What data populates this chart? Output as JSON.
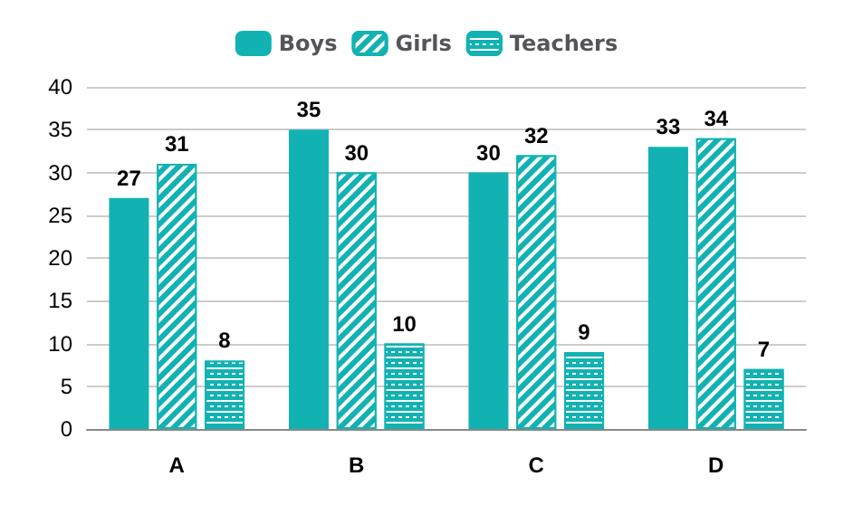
{
  "chart_data": {
    "type": "bar",
    "categories": [
      "A",
      "B",
      "C",
      "D"
    ],
    "series": [
      {
        "name": "Boys",
        "color": "#12b2b2",
        "values": [
          27,
          35,
          30,
          33
        ]
      },
      {
        "name": "Girls",
        "color": "#12b2b2",
        "values": [
          31,
          30,
          32,
          34
        ]
      },
      {
        "name": "Teachers",
        "color": "#12b2b2",
        "values": [
          8,
          10,
          9,
          7
        ]
      }
    ],
    "ylim": [
      0,
      40
    ],
    "yticks": [
      0,
      5,
      10,
      15,
      20,
      25,
      30,
      35,
      40
    ],
    "grid": "y",
    "legend": "top",
    "data_labels": true
  }
}
